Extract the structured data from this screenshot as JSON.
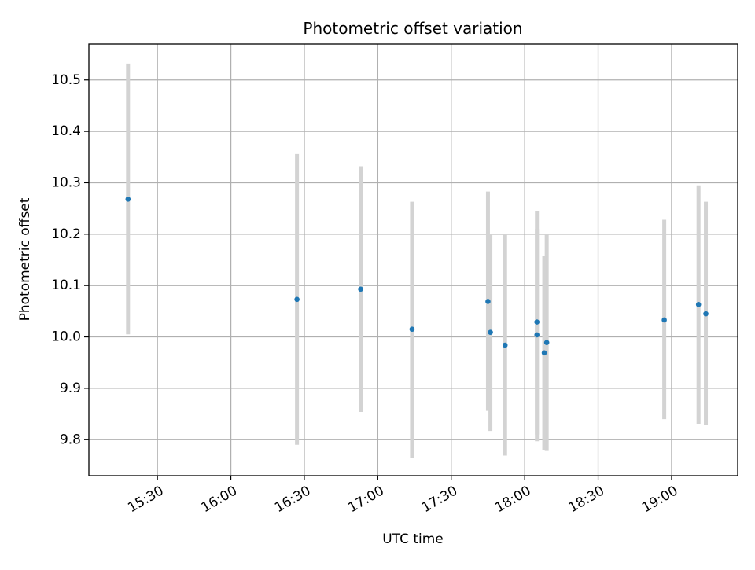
{
  "chart_data": {
    "type": "scatter",
    "title": "Photometric offset variation",
    "xlabel": "UTC time",
    "ylabel": "Photometric offset",
    "grid": true,
    "x_ticks": [
      "15:30",
      "16:00",
      "16:30",
      "17:00",
      "17:30",
      "18:00",
      "18:30",
      "19:00"
    ],
    "y_ticks": [
      "9.8",
      "9.9",
      "10.0",
      "10.1",
      "10.2",
      "10.3",
      "10.4",
      "10.5"
    ],
    "xlim": [
      "15:02",
      "19:27"
    ],
    "ylim": [
      9.73,
      10.57
    ],
    "points": [
      {
        "x": "15:18",
        "y": 10.268,
        "ylow": 10.005,
        "yhigh": 10.532
      },
      {
        "x": "16:27",
        "y": 10.073,
        "ylow": 9.79,
        "yhigh": 10.356
      },
      {
        "x": "16:53",
        "y": 10.093,
        "ylow": 9.854,
        "yhigh": 10.332
      },
      {
        "x": "17:14",
        "y": 10.015,
        "ylow": 9.765,
        "yhigh": 10.263
      },
      {
        "x": "17:45",
        "y": 10.069,
        "ylow": 9.856,
        "yhigh": 10.283
      },
      {
        "x": "17:46",
        "y": 10.009,
        "ylow": 9.817,
        "yhigh": 10.2
      },
      {
        "x": "17:52",
        "y": 9.984,
        "ylow": 9.769,
        "yhigh": 10.2
      },
      {
        "x": "18:05",
        "y": 10.029,
        "ylow": 9.81,
        "yhigh": 10.245
      },
      {
        "x": "18:05",
        "y": 10.004,
        "ylow": 9.797,
        "yhigh": 10.21
      },
      {
        "x": "18:09",
        "y": 9.989,
        "ylow": 9.778,
        "yhigh": 10.2
      },
      {
        "x": "18:08",
        "y": 9.969,
        "ylow": 9.78,
        "yhigh": 10.158
      },
      {
        "x": "18:57",
        "y": 10.033,
        "ylow": 9.84,
        "yhigh": 10.228
      },
      {
        "x": "19:11",
        "y": 10.063,
        "ylow": 9.831,
        "yhigh": 10.295
      },
      {
        "x": "19:14",
        "y": 10.045,
        "ylow": 9.828,
        "yhigh": 10.263
      }
    ],
    "colors": {
      "point": "#1f77b4",
      "errorbar": "#d3d3d3",
      "grid": "#b0b0b0",
      "axis": "#000000"
    }
  }
}
